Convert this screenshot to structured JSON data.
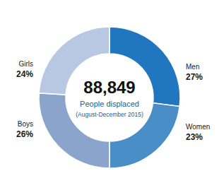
{
  "chart_data": {
    "type": "pie",
    "title": "88,849",
    "subtitle": "People displaced",
    "annotations": [
      "(August-December 2015)"
    ],
    "categories": [
      "Men",
      "Women",
      "Boys",
      "Girls"
    ],
    "values": [
      27,
      23,
      26,
      24
    ],
    "value_labels": [
      "27%",
      "23%",
      "26%",
      "24%"
    ],
    "colors": [
      "#2077c0",
      "#4a8ec8",
      "#8aa4cc",
      "#b8c8e2"
    ],
    "data_labels": true
  }
}
